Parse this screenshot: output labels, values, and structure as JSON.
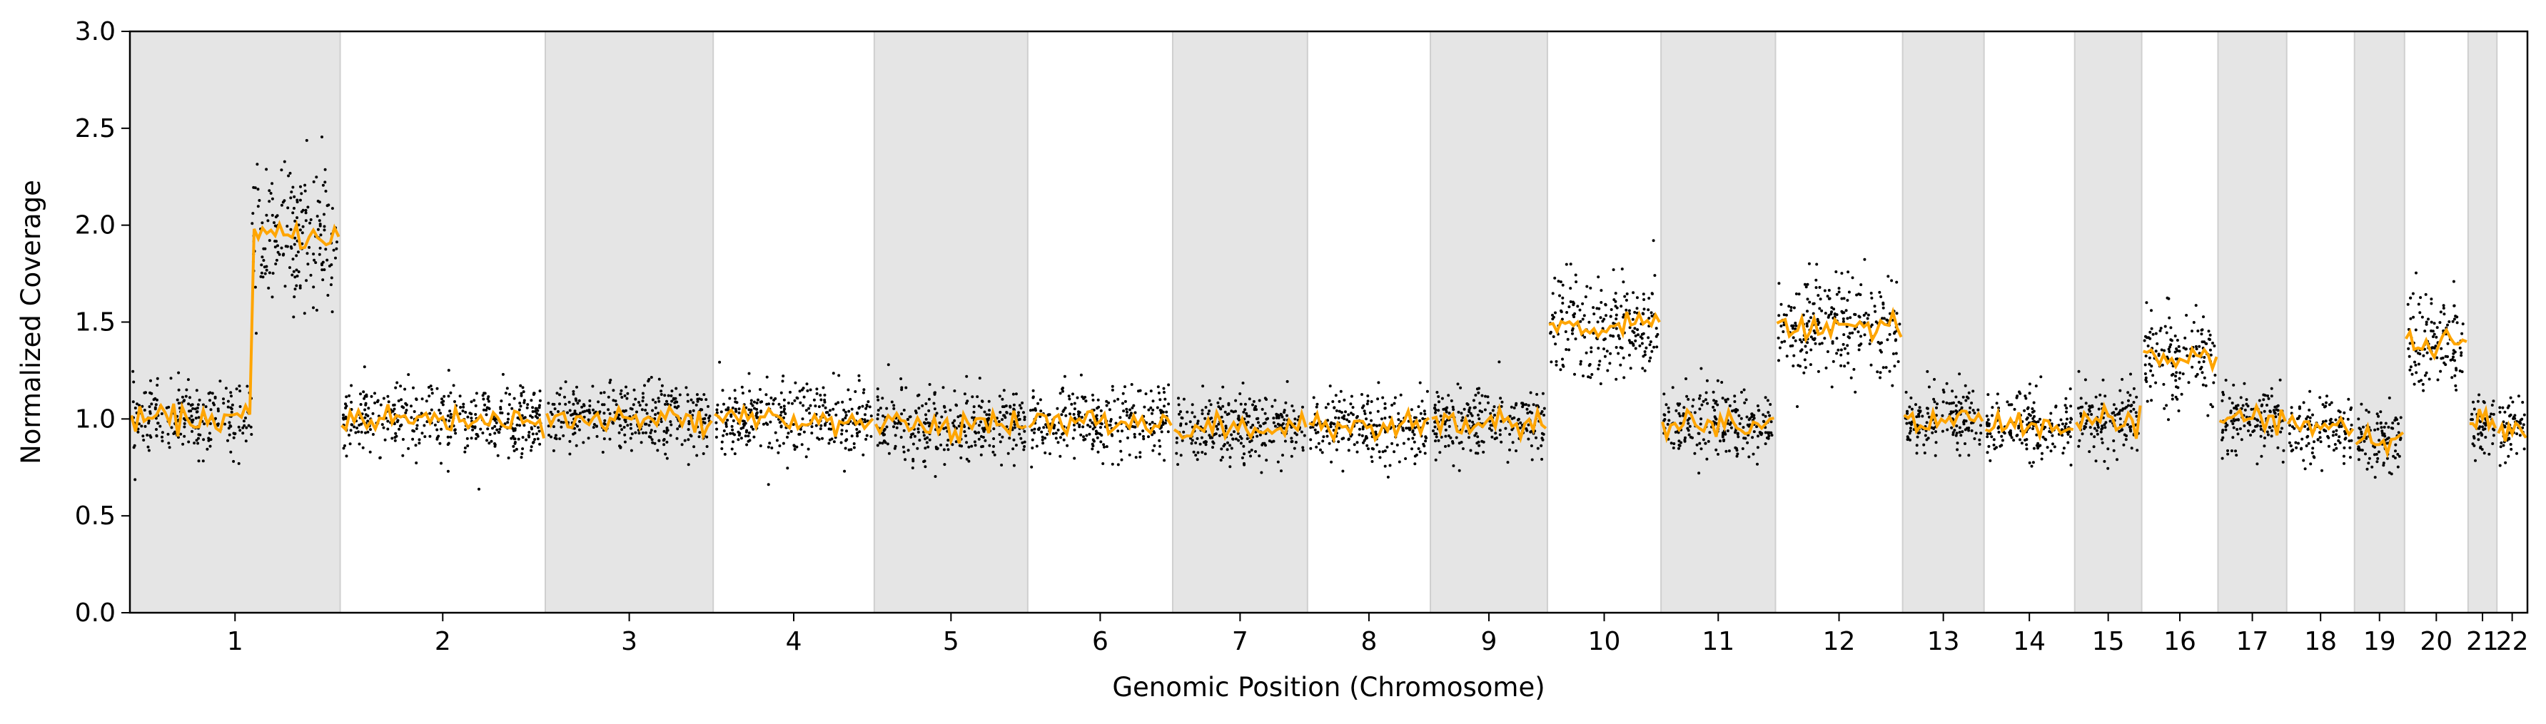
{
  "chart_data": {
    "type": "scatter",
    "xlabel": "Genomic Position (Chromosome)",
    "ylabel": "Normalized Coverage",
    "ylim": [
      0,
      3.0
    ],
    "yticks": [
      "0.0",
      "0.5",
      "1.0",
      "1.5",
      "2.0",
      "2.5",
      "3.0"
    ],
    "grid": false,
    "legend": "none",
    "colors": {
      "points": "#000000",
      "segments": "#ffa500",
      "band": "#e5e5e5",
      "band_edge": "#cfcfcf"
    },
    "chromosomes": [
      {
        "label": "1",
        "size": 248,
        "band": true,
        "mean": [
          1.0,
          1.95
        ],
        "split": 0.58
      },
      {
        "label": "2",
        "size": 242,
        "band": false,
        "mean": [
          1.0
        ]
      },
      {
        "label": "3",
        "size": 198,
        "band": true,
        "mean": [
          1.0
        ]
      },
      {
        "label": "4",
        "size": 190,
        "band": false,
        "mean": [
          1.0
        ]
      },
      {
        "label": "5",
        "size": 181,
        "band": true,
        "mean": [
          0.98
        ]
      },
      {
        "label": "6",
        "size": 171,
        "band": false,
        "mean": [
          0.98
        ]
      },
      {
        "label": "7",
        "size": 159,
        "band": true,
        "mean": [
          0.95
        ]
      },
      {
        "label": "8",
        "size": 145,
        "band": false,
        "mean": [
          0.96
        ]
      },
      {
        "label": "9",
        "size": 138,
        "band": true,
        "mean": [
          0.98
        ]
      },
      {
        "label": "10",
        "size": 134,
        "band": false,
        "mean": [
          1.48
        ]
      },
      {
        "label": "11",
        "size": 135,
        "band": true,
        "mean": [
          0.98
        ]
      },
      {
        "label": "12",
        "size": 150,
        "band": false,
        "mean": [
          1.48
        ]
      },
      {
        "label": "13",
        "size": 96,
        "band": true,
        "mean": [
          1.0
        ]
      },
      {
        "label": "14",
        "size": 107,
        "band": false,
        "mean": [
          0.96
        ]
      },
      {
        "label": "15",
        "size": 79,
        "band": true,
        "mean": [
          1.0
        ]
      },
      {
        "label": "16",
        "size": 90,
        "band": false,
        "mean": [
          1.32
        ]
      },
      {
        "label": "17",
        "size": 81,
        "band": true,
        "mean": [
          1.0
        ]
      },
      {
        "label": "18",
        "size": 80,
        "band": false,
        "mean": [
          0.95
        ]
      },
      {
        "label": "19",
        "size": 59,
        "band": true,
        "mean": [
          0.9
        ]
      },
      {
        "label": "20",
        "size": 75,
        "band": false,
        "mean": [
          1.4
        ]
      },
      {
        "label": "21",
        "size": 34,
        "band": true,
        "mean": [
          0.97
        ]
      },
      {
        "label": "22",
        "size": 36,
        "band": false,
        "mean": [
          0.96
        ]
      }
    ]
  }
}
